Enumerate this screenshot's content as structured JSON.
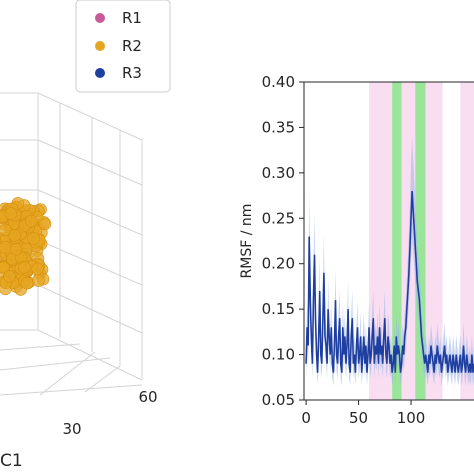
{
  "colors": {
    "R1": "#c85a9b",
    "R2": "#e6a520",
    "R3": "#1f3fa0",
    "rmsf_line": "#1f3fa0",
    "rmsf_band": "#9fb8e6",
    "pink_region": "#f7d3ec",
    "green_region": "#8fe28f",
    "grid": "#d9d9d9"
  },
  "left_panel": {
    "axis_ticks": [
      "30",
      "60"
    ],
    "axis_label_fragment": "C1",
    "legend": [
      {
        "label": "R1",
        "color_key": "R1"
      },
      {
        "label": "R2",
        "color_key": "R2"
      },
      {
        "label": "R3",
        "color_key": "R3"
      }
    ]
  },
  "chart_data": {
    "type": "line",
    "ylabel": "RMSF / nm",
    "ylim": [
      0.05,
      0.4
    ],
    "yticks": [
      "0.05",
      "0.10",
      "0.15",
      "0.20",
      "0.25",
      "0.30",
      "0.35",
      "0.40"
    ],
    "xlim": [
      -2,
      160
    ],
    "xticks": [
      "0",
      "50",
      "100"
    ],
    "xticks_values": [
      0,
      50,
      100
    ],
    "shaded_regions": [
      {
        "x0": 60,
        "x1": 82,
        "kind": "pink"
      },
      {
        "x0": 82,
        "x1": 91,
        "kind": "green"
      },
      {
        "x0": 91,
        "x1": 104,
        "kind": "pink"
      },
      {
        "x0": 104,
        "x1": 114,
        "kind": "green"
      },
      {
        "x0": 114,
        "x1": 130,
        "kind": "pink"
      },
      {
        "x0": 147,
        "x1": 160,
        "kind": "pink"
      }
    ],
    "series": [
      {
        "x": [
          0,
          1,
          2,
          3,
          4,
          5,
          6,
          7,
          8,
          9,
          10,
          11,
          12,
          13,
          14,
          15,
          16,
          17,
          18,
          19,
          20,
          21,
          22,
          23,
          24,
          25,
          26,
          27,
          28,
          29,
          30,
          31,
          32,
          33,
          34,
          35,
          36,
          37,
          38,
          39,
          40,
          41,
          42,
          43,
          44,
          45,
          46,
          47,
          48,
          49,
          50,
          51,
          52,
          53,
          54,
          55,
          56,
          57,
          58,
          59,
          60,
          61,
          62,
          63,
          64,
          65,
          66,
          67,
          68,
          69,
          70,
          71,
          72,
          73,
          74,
          75,
          76,
          77,
          78,
          79,
          80,
          81,
          82,
          83,
          84,
          85,
          86,
          87,
          88,
          89,
          90,
          91,
          92,
          93,
          94,
          95,
          96,
          97,
          98,
          99,
          100,
          101,
          102,
          103,
          104,
          105,
          106,
          107,
          108,
          109,
          110,
          111,
          112,
          113,
          114,
          115,
          116,
          117,
          118,
          119,
          120,
          121,
          122,
          123,
          124,
          125,
          126,
          127,
          128,
          129,
          130,
          131,
          132,
          133,
          134,
          135,
          136,
          137,
          138,
          139,
          140,
          141,
          142,
          143,
          144,
          145,
          146,
          147,
          148,
          149,
          150,
          151,
          152,
          153,
          154,
          155,
          156,
          157,
          158,
          159,
          160
        ],
        "y": [
          0.09,
          0.13,
          0.11,
          0.23,
          0.16,
          0.12,
          0.09,
          0.16,
          0.21,
          0.14,
          0.1,
          0.08,
          0.12,
          0.17,
          0.1,
          0.09,
          0.14,
          0.19,
          0.12,
          0.11,
          0.09,
          0.15,
          0.12,
          0.1,
          0.13,
          0.09,
          0.08,
          0.11,
          0.16,
          0.1,
          0.09,
          0.12,
          0.14,
          0.09,
          0.08,
          0.13,
          0.1,
          0.12,
          0.09,
          0.11,
          0.15,
          0.09,
          0.08,
          0.12,
          0.14,
          0.09,
          0.1,
          0.08,
          0.11,
          0.13,
          0.09,
          0.1,
          0.12,
          0.08,
          0.1,
          0.12,
          0.09,
          0.11,
          0.08,
          0.1,
          0.13,
          0.09,
          0.1,
          0.12,
          0.14,
          0.09,
          0.11,
          0.1,
          0.12,
          0.09,
          0.13,
          0.1,
          0.11,
          0.09,
          0.12,
          0.14,
          0.1,
          0.09,
          0.12,
          0.11,
          0.09,
          0.1,
          0.08,
          0.09,
          0.11,
          0.08,
          0.12,
          0.1,
          0.11,
          0.1,
          0.08,
          0.09,
          0.11,
          0.1,
          0.12,
          0.13,
          0.15,
          0.17,
          0.19,
          0.22,
          0.25,
          0.28,
          0.26,
          0.24,
          0.22,
          0.2,
          0.18,
          0.17,
          0.16,
          0.14,
          0.12,
          0.11,
          0.1,
          0.09,
          0.1,
          0.09,
          0.08,
          0.1,
          0.09,
          0.11,
          0.1,
          0.09,
          0.08,
          0.1,
          0.09,
          0.11,
          0.1,
          0.09,
          0.1,
          0.08,
          0.09,
          0.1,
          0.11,
          0.09,
          0.1,
          0.08,
          0.09,
          0.1,
          0.09,
          0.08,
          0.1,
          0.09,
          0.08,
          0.1,
          0.09,
          0.08,
          0.09,
          0.1,
          0.08,
          0.09,
          0.11,
          0.09,
          0.08,
          0.1,
          0.09,
          0.08,
          0.09,
          0.08,
          0.1,
          0.08,
          0.09
        ]
      }
    ]
  }
}
